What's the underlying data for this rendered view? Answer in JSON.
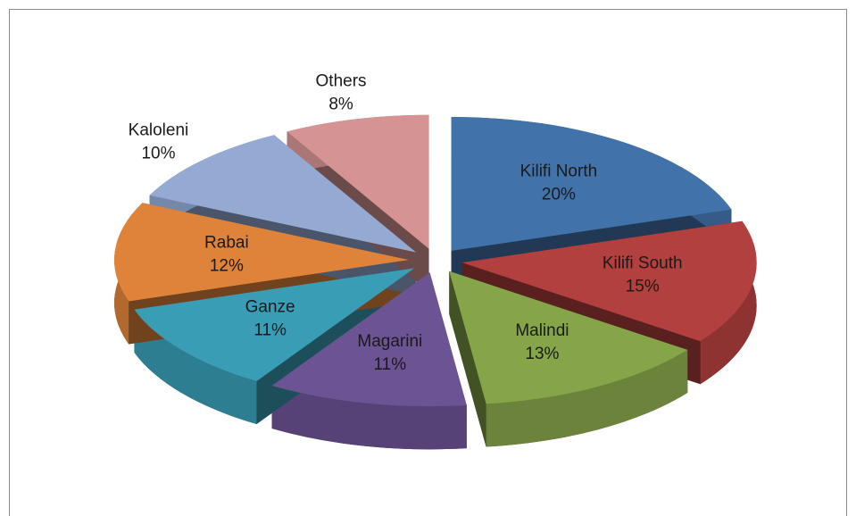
{
  "chart_data": {
    "type": "pie",
    "categories": [
      "Kilifi North",
      "Kilifi South",
      "Malindi",
      "Magarini",
      "Ganze",
      "Rabai",
      "Kaloleni",
      "Others"
    ],
    "values": [
      20,
      15,
      13,
      11,
      11,
      12,
      10,
      8
    ],
    "value_labels": [
      "20%",
      "15%",
      "13%",
      "11%",
      "11%",
      "12%",
      "10%",
      "8%"
    ],
    "colors": [
      "#4272aa",
      "#b2403e",
      "#86a448",
      "#6c5393",
      "#3a9db6",
      "#df833a",
      "#94aad3",
      "#d59393"
    ]
  }
}
